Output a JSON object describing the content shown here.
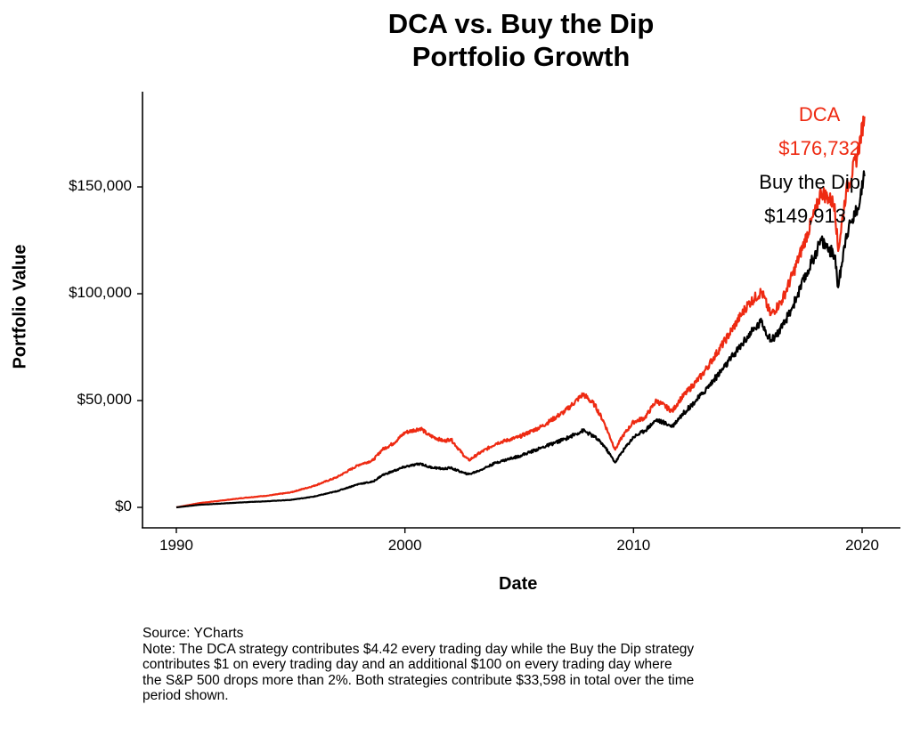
{
  "chart_data": {
    "type": "line",
    "title": "DCA vs. Buy the Dip\nPortfolio Growth",
    "title_lines": [
      "DCA vs. Buy the Dip",
      "Portfolio Growth"
    ],
    "xlabel": "Date",
    "ylabel": "Portfolio Value",
    "xlim": [
      1990,
      2021.7
    ],
    "ylim": [
      -8000,
      195000
    ],
    "grid": false,
    "x_ticks": [
      1990,
      2000,
      2010,
      2020
    ],
    "x_tick_labels": [
      "1990",
      "2000",
      "2010",
      "2020"
    ],
    "y_ticks": [
      0,
      50000,
      100000,
      150000
    ],
    "y_tick_labels": [
      "$0",
      "$50,000",
      "$100,000",
      "$150,000"
    ],
    "x": [
      1990,
      1991,
      1992,
      1993,
      1994,
      1995,
      1996,
      1997,
      1998,
      1998.6,
      1999,
      1999.5,
      2000,
      2000.7,
      2001,
      2001.7,
      2002,
      2002.6,
      2002.8,
      2003.2,
      2004,
      2005,
      2006,
      2007,
      2007.8,
      2008.3,
      2008.7,
      2009.2,
      2009.5,
      2010,
      2010.5,
      2011,
      2011.7,
      2012,
      2013,
      2014,
      2015,
      2015.6,
      2016,
      2016.5,
      2017,
      2018,
      2018.2,
      2018.8,
      2018.95,
      2019.3,
      2019.8,
      2020.1
    ],
    "series": [
      {
        "name": "DCA",
        "color": "#ee2a12",
        "values": [
          0,
          2000,
          3200,
          4500,
          5500,
          7000,
          10000,
          14000,
          20000,
          22000,
          27000,
          30000,
          35000,
          37000,
          34000,
          31000,
          32000,
          24000,
          22000,
          25000,
          30000,
          33000,
          38000,
          45000,
          53000,
          48000,
          40000,
          27000,
          33000,
          40000,
          42000,
          50000,
          45000,
          50000,
          62000,
          78000,
          95000,
          101000,
          90000,
          97000,
          110000,
          140000,
          148000,
          142000,
          120000,
          148000,
          165000,
          183000
        ]
      },
      {
        "name": "Buy the Dip",
        "color": "#000000",
        "values": [
          0,
          1200,
          1800,
          2400,
          2900,
          3500,
          5000,
          7500,
          11000,
          12000,
          15000,
          17000,
          19000,
          20500,
          19000,
          18000,
          18500,
          16000,
          15500,
          17000,
          21000,
          24000,
          28000,
          32000,
          36000,
          33000,
          29000,
          21000,
          26000,
          33000,
          36000,
          41000,
          38000,
          42000,
          53000,
          66000,
          80000,
          87000,
          78000,
          84000,
          95000,
          120000,
          125000,
          118000,
          103000,
          128000,
          140000,
          155000
        ]
      }
    ],
    "annotations": [
      {
        "series": "DCA",
        "label": "DCA",
        "value": "$176,732",
        "color": "#ee2a12"
      },
      {
        "series": "Buy the Dip",
        "label": "Buy the Dip",
        "value": "$149,913",
        "color": "#000000"
      }
    ]
  },
  "caption": {
    "source": "Source:  YCharts",
    "note_lines": [
      "Note: The DCA strategy contributes $4.42 every trading day while the Buy the Dip strategy",
      "contributes $1 on every trading day and an additional $100 on every trading day where",
      "the S&P 500 drops more than 2%. Both strategies contribute $33,598 in total over the time",
      "period shown."
    ]
  }
}
